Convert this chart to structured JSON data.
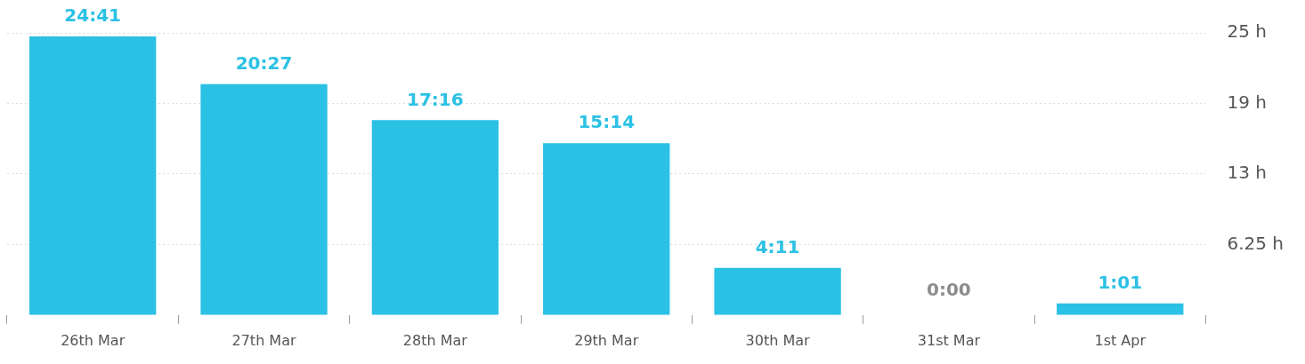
{
  "chart_data": {
    "type": "bar",
    "categories": [
      "26th Mar",
      "27th Mar",
      "28th Mar",
      "29th Mar",
      "30th Mar",
      "31st Mar",
      "1st Apr"
    ],
    "values": [
      24.683,
      20.45,
      17.267,
      15.233,
      4.183,
      0,
      1.017
    ],
    "colors": [
      "#2bc1e5",
      "#2bc1e5",
      "#2bc1e5",
      "#2bc1e5",
      "#2bc1e5",
      "#8c8c8c",
      "#2bc1e5"
    ],
    "value_labels": [
      "24:41",
      "20:27",
      "17:16",
      "15:14",
      "4:11",
      "0:00",
      "1:01"
    ],
    "ylim": [
      0,
      25
    ],
    "yticks": [
      {
        "value": 6.25,
        "label": "6.25 h"
      },
      {
        "value": 12.5,
        "label": "13 h"
      },
      {
        "value": 18.75,
        "label": "19 h"
      },
      {
        "value": 25,
        "label": "25 h"
      }
    ],
    "grid": "y",
    "legend": false
  }
}
